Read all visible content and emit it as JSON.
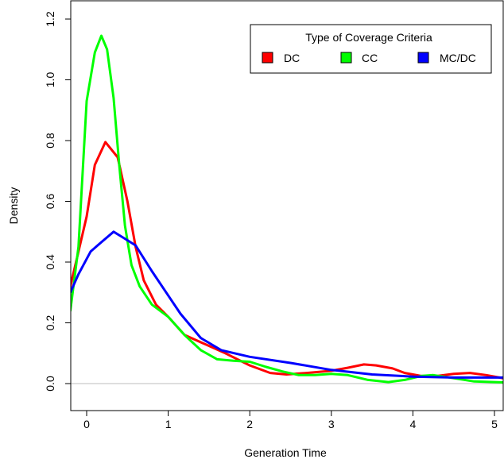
{
  "chart_data": {
    "type": "line",
    "title": "",
    "xlabel": "Generation Time",
    "ylabel": "Density",
    "xlim": [
      -0.2,
      5.1
    ],
    "ylim": [
      -0.05,
      1.25
    ],
    "x_ticks": [
      "0",
      "1",
      "2",
      "3",
      "4",
      "5"
    ],
    "y_ticks": [
      "0.0",
      "0.2",
      "0.4",
      "0.6",
      "0.8",
      "1.0",
      "1.2"
    ],
    "baseline": 0,
    "legend": {
      "title": "Type of Coverage Criteria",
      "position": "top-right",
      "entries": [
        "DC",
        "CC",
        "MC/DC"
      ]
    },
    "series": [
      {
        "name": "DC",
        "color": "#ff0000",
        "points": [
          [
            -0.2,
            0.32
          ],
          [
            0.0,
            0.55
          ],
          [
            0.1,
            0.72
          ],
          [
            0.23,
            0.795
          ],
          [
            0.38,
            0.745
          ],
          [
            0.5,
            0.6
          ],
          [
            0.6,
            0.45
          ],
          [
            0.7,
            0.34
          ],
          [
            0.85,
            0.26
          ],
          [
            1.0,
            0.22
          ],
          [
            1.2,
            0.16
          ],
          [
            1.45,
            0.13
          ],
          [
            1.7,
            0.1
          ],
          [
            2.0,
            0.06
          ],
          [
            2.25,
            0.035
          ],
          [
            2.45,
            0.03
          ],
          [
            2.7,
            0.035
          ],
          [
            3.0,
            0.042
          ],
          [
            3.2,
            0.052
          ],
          [
            3.4,
            0.063
          ],
          [
            3.55,
            0.06
          ],
          [
            3.75,
            0.05
          ],
          [
            3.9,
            0.035
          ],
          [
            4.1,
            0.025
          ],
          [
            4.3,
            0.025
          ],
          [
            4.5,
            0.032
          ],
          [
            4.7,
            0.035
          ],
          [
            4.9,
            0.028
          ],
          [
            5.1,
            0.018
          ]
        ]
      },
      {
        "name": "CC",
        "color": "#00ff00",
        "points": [
          [
            -0.2,
            0.24
          ],
          [
            -0.1,
            0.45
          ],
          [
            0.0,
            0.93
          ],
          [
            0.1,
            1.09
          ],
          [
            0.18,
            1.145
          ],
          [
            0.25,
            1.1
          ],
          [
            0.33,
            0.94
          ],
          [
            0.4,
            0.72
          ],
          [
            0.47,
            0.52
          ],
          [
            0.55,
            0.39
          ],
          [
            0.65,
            0.32
          ],
          [
            0.8,
            0.26
          ],
          [
            1.0,
            0.22
          ],
          [
            1.2,
            0.16
          ],
          [
            1.4,
            0.11
          ],
          [
            1.6,
            0.08
          ],
          [
            1.8,
            0.075
          ],
          [
            2.0,
            0.072
          ],
          [
            2.2,
            0.055
          ],
          [
            2.4,
            0.04
          ],
          [
            2.6,
            0.028
          ],
          [
            2.8,
            0.028
          ],
          [
            3.0,
            0.032
          ],
          [
            3.2,
            0.028
          ],
          [
            3.45,
            0.012
          ],
          [
            3.7,
            0.005
          ],
          [
            3.9,
            0.012
          ],
          [
            4.1,
            0.025
          ],
          [
            4.25,
            0.028
          ],
          [
            4.5,
            0.018
          ],
          [
            4.75,
            0.007
          ],
          [
            5.1,
            0.004
          ]
        ]
      },
      {
        "name": "MC/DC",
        "color": "#0000ff",
        "points": [
          [
            -0.2,
            0.3
          ],
          [
            -0.1,
            0.36
          ],
          [
            0.05,
            0.435
          ],
          [
            0.2,
            0.47
          ],
          [
            0.33,
            0.5
          ],
          [
            0.45,
            0.48
          ],
          [
            0.6,
            0.455
          ],
          [
            0.8,
            0.37
          ],
          [
            1.0,
            0.29
          ],
          [
            1.15,
            0.23
          ],
          [
            1.4,
            0.15
          ],
          [
            1.65,
            0.11
          ],
          [
            2.0,
            0.088
          ],
          [
            2.5,
            0.068
          ],
          [
            3.0,
            0.045
          ],
          [
            3.5,
            0.03
          ],
          [
            4.0,
            0.023
          ],
          [
            4.5,
            0.02
          ],
          [
            5.1,
            0.02
          ]
        ]
      }
    ]
  }
}
